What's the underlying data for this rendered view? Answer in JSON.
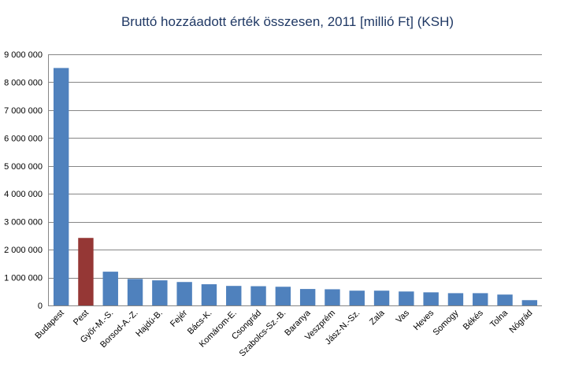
{
  "chart_data": {
    "type": "bar",
    "title": "Bruttó hozzáadott érték összesen, 2011 [millió Ft] (KSH)",
    "xlabel": "",
    "ylabel": "",
    "ylim": [
      0,
      9000000
    ],
    "yticks": [
      0,
      1000000,
      2000000,
      3000000,
      4000000,
      5000000,
      6000000,
      7000000,
      8000000,
      9000000
    ],
    "ytick_labels": [
      "0",
      "1 000 000",
      "2 000 000",
      "3 000 000",
      "4 000 000",
      "5 000 000",
      "6 000 000",
      "7 000 000",
      "8 000 000",
      "9 000 000"
    ],
    "grid": true,
    "legend": "none",
    "categories": [
      "Budapest",
      "Pest",
      "Győr-M.-S.",
      "Borsod-A.-Z.",
      "Hajdú-B.",
      "Fejér",
      "Bács-K.",
      "Komárom-E.",
      "Csongrád",
      "Szabolcs-Sz.-B.",
      "Baranya",
      "Veszprém",
      "Jász-N.-Sz.",
      "Zala",
      "Vas",
      "Heves",
      "Somogy",
      "Békés",
      "Tolna",
      "Nógrád"
    ],
    "values": [
      8510000,
      2420000,
      1210000,
      950000,
      900000,
      840000,
      760000,
      700000,
      690000,
      670000,
      590000,
      580000,
      530000,
      530000,
      500000,
      470000,
      440000,
      440000,
      390000,
      190000
    ],
    "bar_color": "#4f81bd",
    "highlight_index": 1,
    "highlight_color": "#953735"
  }
}
